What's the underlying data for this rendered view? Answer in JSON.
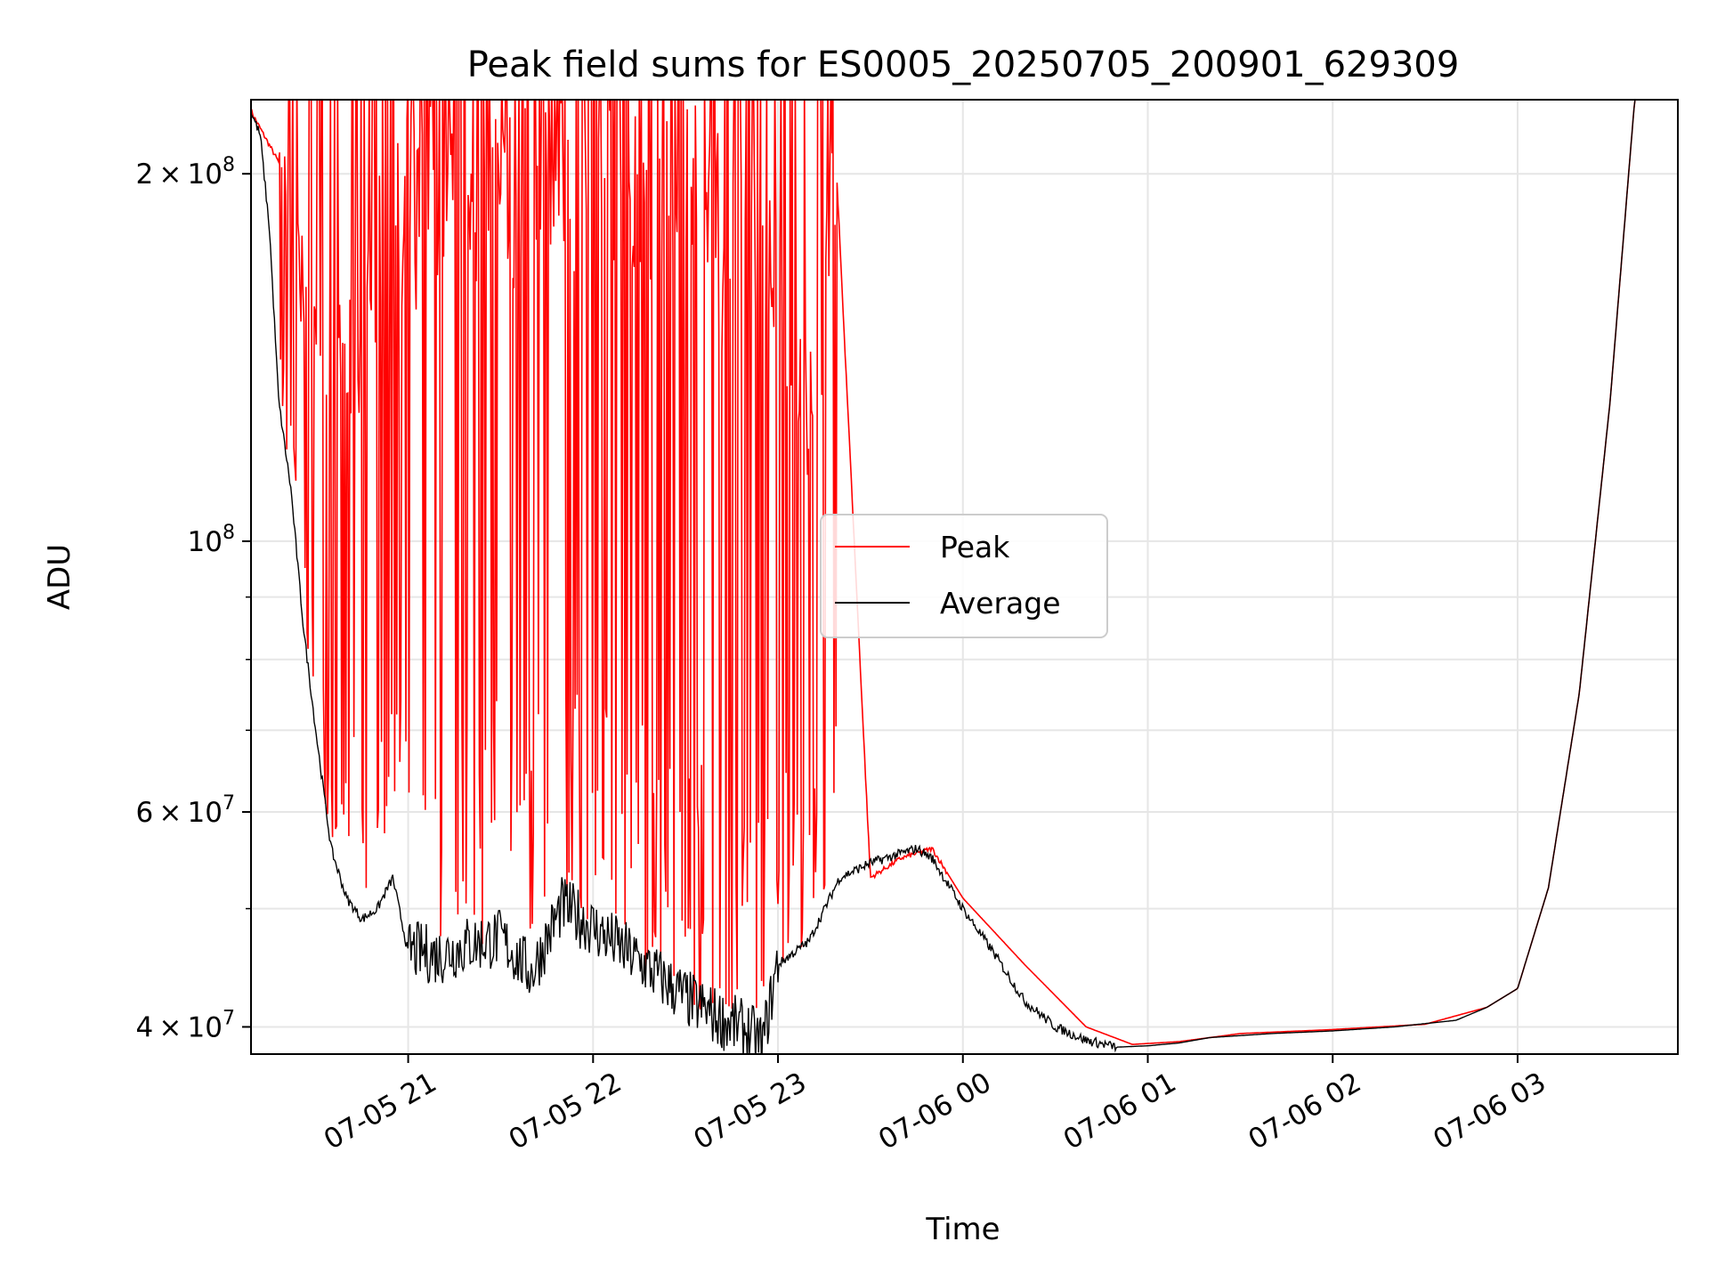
{
  "chart_data": {
    "type": "line",
    "title": "Peak field sums for ES0005_20250705_200901_629309",
    "xlabel": "Time",
    "ylabel": "ADU",
    "x_range": [
      "2025-07-05 20:09",
      "2025-07-06 03:52"
    ],
    "y_scale": "log",
    "ylim": [
      38000000,
      230000000
    ],
    "grid": true,
    "legend_placement": "center",
    "x_tick_labels": [
      "07-05 21",
      "07-05 22",
      "07-05 23",
      "07-06 00",
      "07-06 01",
      "07-06 02",
      "07-06 03"
    ],
    "x_tick_values": [
      "2025-07-05 21:00",
      "2025-07-05 22:00",
      "2025-07-05 23:00",
      "2025-07-06 00:00",
      "2025-07-06 01:00",
      "2025-07-06 02:00",
      "2025-07-06 03:00"
    ],
    "y_tick_labels": [
      {
        "value": 40000000,
        "mantissa": "4",
        "exp": "7"
      },
      {
        "value": 60000000,
        "mantissa": "6",
        "exp": "7"
      },
      {
        "value": 100000000,
        "mantissa": "",
        "exp": "8"
      },
      {
        "value": 200000000,
        "mantissa": "2",
        "exp": "8"
      }
    ],
    "y_minor_ticks": [
      50000000,
      70000000,
      80000000,
      90000000
    ],
    "series": [
      {
        "name": "Peak",
        "color": "#ff0000",
        "x": [
          "2025-07-05 20:09",
          "2025-07-05 20:20",
          "2025-07-05 20:30",
          "2025-07-05 20:40",
          "2025-07-05 20:50",
          "2025-07-05 21:00",
          "2025-07-05 21:15",
          "2025-07-05 21:30",
          "2025-07-05 21:45",
          "2025-07-05 22:00",
          "2025-07-05 22:15",
          "2025-07-05 22:30",
          "2025-07-05 22:45",
          "2025-07-05 23:00",
          "2025-07-05 23:10",
          "2025-07-05 23:19",
          "2025-07-05 23:30",
          "2025-07-05 23:40",
          "2025-07-05 23:50",
          "2025-07-06 00:00",
          "2025-07-06 00:20",
          "2025-07-06 00:40",
          "2025-07-06 00:55",
          "2025-07-06 01:10",
          "2025-07-06 01:30",
          "2025-07-06 02:00",
          "2025-07-06 02:30",
          "2025-07-06 02:50",
          "2025-07-06 03:00",
          "2025-07-06 03:10",
          "2025-07-06 03:20",
          "2025-07-06 03:30",
          "2025-07-06 03:38"
        ],
        "values": [
          225000000,
          200000000,
          150000000,
          140000000,
          175000000,
          200000000,
          210000000,
          215000000,
          220000000,
          228000000,
          218000000,
          205000000,
          190000000,
          175000000,
          130000000,
          200000000,
          53000000,
          55000000,
          56000000,
          51000000,
          45000000,
          40000000,
          38700000,
          38900000,
          39500000,
          39800000,
          40200000,
          41500000,
          43000000,
          52000000,
          75000000,
          130000000,
          230000000
        ]
      },
      {
        "name": "Average",
        "color": "#000000",
        "x": [
          "2025-07-05 20:09",
          "2025-07-05 20:12",
          "2025-07-05 20:15",
          "2025-07-05 20:18",
          "2025-07-05 20:22",
          "2025-07-05 20:26",
          "2025-07-05 20:30",
          "2025-07-05 20:35",
          "2025-07-05 20:40",
          "2025-07-05 20:45",
          "2025-07-05 20:50",
          "2025-07-05 20:55",
          "2025-07-05 21:00",
          "2025-07-05 21:10",
          "2025-07-05 21:20",
          "2025-07-05 21:30",
          "2025-07-05 21:40",
          "2025-07-05 21:50",
          "2025-07-05 22:00",
          "2025-07-05 22:10",
          "2025-07-05 22:20",
          "2025-07-05 22:30",
          "2025-07-05 22:40",
          "2025-07-05 22:50",
          "2025-07-05 22:55",
          "2025-07-05 23:00",
          "2025-07-05 23:10",
          "2025-07-05 23:20",
          "2025-07-05 23:30",
          "2025-07-05 23:40",
          "2025-07-05 23:45",
          "2025-07-05 23:50",
          "2025-07-06 00:00",
          "2025-07-06 00:10",
          "2025-07-06 00:20",
          "2025-07-06 00:30",
          "2025-07-06 00:40",
          "2025-07-06 00:50",
          "2025-07-06 01:00",
          "2025-07-06 01:10",
          "2025-07-06 01:20",
          "2025-07-06 01:40",
          "2025-07-06 02:00",
          "2025-07-06 02:20",
          "2025-07-06 02:40",
          "2025-07-06 02:50",
          "2025-07-06 03:00",
          "2025-07-06 03:10",
          "2025-07-06 03:20",
          "2025-07-06 03:30",
          "2025-07-06 03:38"
        ],
        "values": [
          225000000,
          215000000,
          180000000,
          130000000,
          110000000,
          85000000,
          70000000,
          56000000,
          51000000,
          49000000,
          50000000,
          53000000,
          46000000,
          45500000,
          46500000,
          47000000,
          44000000,
          50000000,
          48000000,
          46000000,
          44000000,
          42000000,
          40500000,
          39500000,
          38500000,
          45000000,
          47000000,
          53000000,
          54500000,
          55500000,
          56000000,
          55000000,
          50000000,
          46000000,
          42000000,
          40000000,
          39000000,
          38500000,
          38600000,
          38800000,
          39200000,
          39500000,
          39700000,
          40000000,
          40500000,
          41500000,
          43000000,
          52000000,
          75000000,
          130000000,
          230000000
        ]
      }
    ]
  }
}
